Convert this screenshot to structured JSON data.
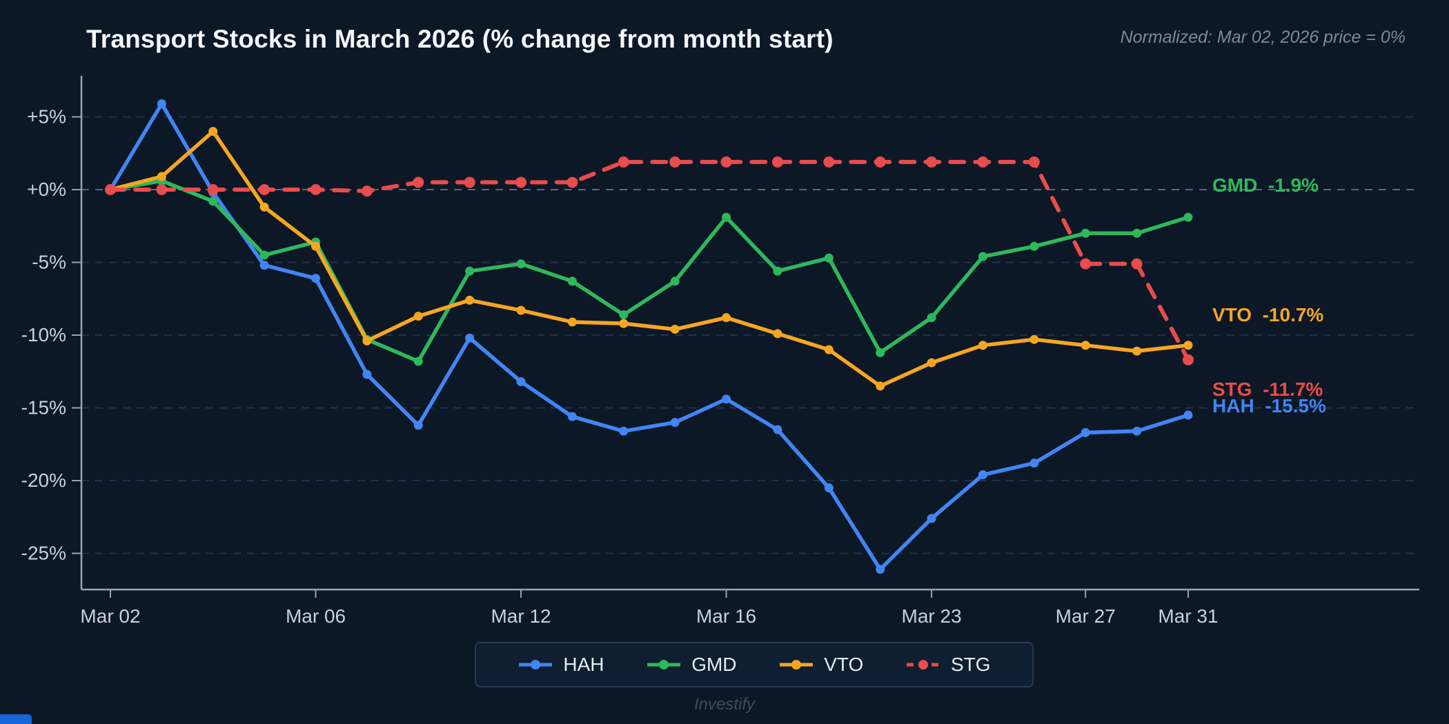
{
  "page": {
    "title": "Transport Stocks in March 2026 (% change from month start)",
    "subtitle": "Normalized: Mar 02, 2026 price = 0%",
    "footer": "Investify"
  },
  "chart_data": {
    "type": "line",
    "title": "Transport Stocks in March 2026 (% change from month start)",
    "subtitle": "Normalized: Mar 02, 2026 price = 0%",
    "xlabel": "",
    "ylabel": "% change from month start",
    "n_points": 22,
    "x_tick_labels": [
      {
        "label": "Mar 02",
        "index": 0
      },
      {
        "label": "Mar 06",
        "index": 4
      },
      {
        "label": "Mar 12",
        "index": 8
      },
      {
        "label": "Mar 16",
        "index": 12
      },
      {
        "label": "Mar 23",
        "index": 16
      },
      {
        "label": "Mar 27",
        "index": 19
      },
      {
        "label": "Mar 31",
        "index": 21
      }
    ],
    "y_ticks": [
      {
        "label": "+5%",
        "value": 5
      },
      {
        "label": "+0%",
        "value": 0
      },
      {
        "label": "-5%",
        "value": -5
      },
      {
        "label": "-10%",
        "value": -10
      },
      {
        "label": "-15%",
        "value": -15
      },
      {
        "label": "-20%",
        "value": -20
      },
      {
        "label": "-25%",
        "value": -25
      }
    ],
    "ylim": [
      -27.5,
      7.8
    ],
    "grid": "horizontal dashed",
    "legend_position": "bottom center",
    "series": [
      {
        "name": "HAH",
        "color": "#4285f4",
        "style": "solid",
        "values": [
          0,
          5.9,
          -0.2,
          -5.2,
          -6.1,
          -12.7,
          -16.2,
          -10.2,
          -13.2,
          -15.6,
          -16.6,
          -16.0,
          -14.4,
          -16.5,
          -20.5,
          -26.1,
          -22.6,
          -19.6,
          -18.8,
          -16.7,
          -16.6,
          -15.5
        ]
      },
      {
        "name": "GMD",
        "color": "#2eb85c",
        "style": "solid",
        "values": [
          0,
          0.6,
          -0.8,
          -4.5,
          -3.6,
          -10.3,
          -11.8,
          -5.6,
          -5.1,
          -6.3,
          -8.6,
          -6.3,
          -1.9,
          -5.6,
          -4.7,
          -11.2,
          -8.8,
          -4.6,
          -3.9,
          -3.0,
          -3.0,
          -1.9
        ]
      },
      {
        "name": "VTO",
        "color": "#f5a623",
        "style": "solid",
        "values": [
          0,
          0.9,
          4.0,
          -1.2,
          -3.9,
          -10.4,
          -8.7,
          -7.6,
          -8.3,
          -9.1,
          -9.2,
          -9.6,
          -8.8,
          -9.9,
          -11.0,
          -13.5,
          -11.9,
          -10.7,
          -10.3,
          -10.7,
          -11.1,
          -10.7
        ]
      },
      {
        "name": "STG",
        "color": "#e84c4c",
        "style": "dashed",
        "values": [
          0,
          0,
          0,
          0,
          0,
          -0.1,
          0.5,
          0.5,
          0.5,
          0.5,
          1.9,
          1.9,
          1.9,
          1.9,
          1.9,
          1.9,
          1.9,
          1.9,
          1.9,
          -5.1,
          -5.1,
          -11.7
        ]
      }
    ],
    "end_labels": [
      {
        "ticker": "GMD",
        "value": "-1.9%",
        "color": "#2eb85c"
      },
      {
        "ticker": "VTO",
        "value": "-10.7%",
        "color": "#f5a623"
      },
      {
        "ticker": "STG",
        "value": "-11.7%",
        "color": "#e84c4c"
      },
      {
        "ticker": "HAH",
        "value": "-15.5%",
        "color": "#4285f4"
      }
    ]
  }
}
